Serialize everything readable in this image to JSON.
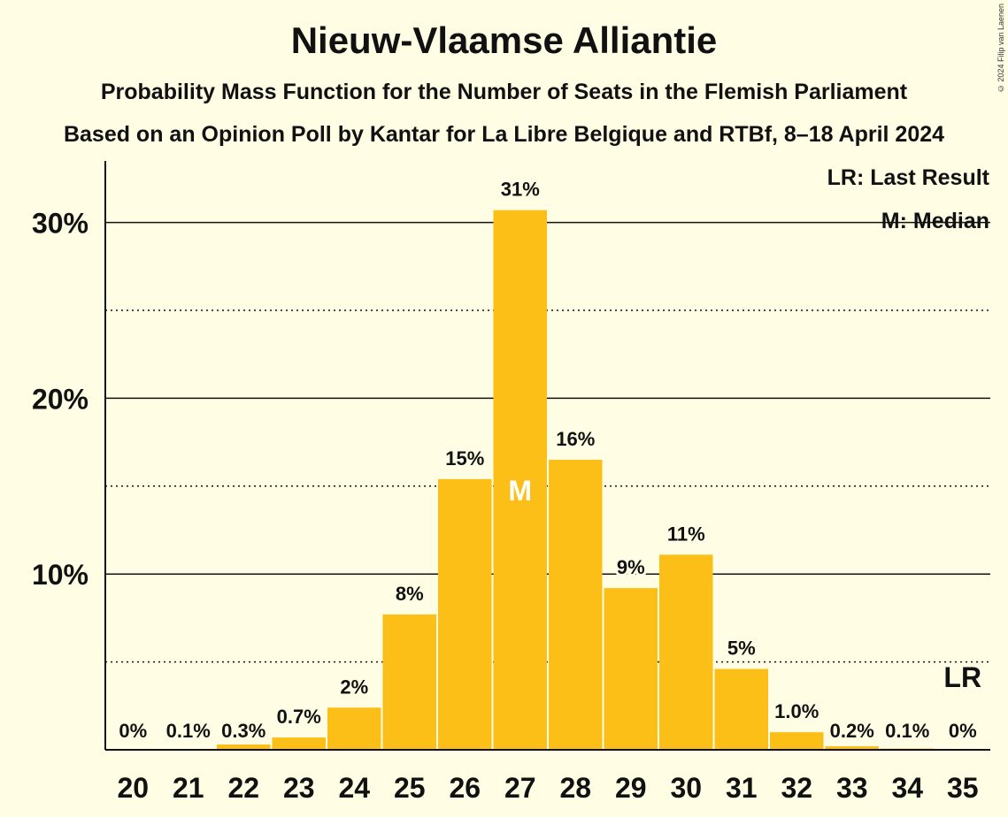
{
  "header": {
    "title": "Nieuw-Vlaamse Alliantie",
    "subtitle": "Probability Mass Function for the Number of Seats in the Flemish Parliament",
    "source": "Based on an Opinion Poll by Kantar for La Libre Belgique and RTBf, 8–18 April 2024",
    "copyright": "© 2024 Filip van Laenen"
  },
  "legend": {
    "last_result": "LR: Last Result",
    "median": "M: Median"
  },
  "colors": {
    "bar": "#FBBF18",
    "background": "#FFFEE5",
    "text": "#111111"
  },
  "chart_data": {
    "type": "bar",
    "title": "Nieuw-Vlaamse Alliantie",
    "xlabel": "",
    "ylabel": "",
    "categories": [
      "20",
      "21",
      "22",
      "23",
      "24",
      "25",
      "26",
      "27",
      "28",
      "29",
      "30",
      "31",
      "32",
      "33",
      "34",
      "35"
    ],
    "values": [
      0,
      0.05,
      0.3,
      0.7,
      2.4,
      7.7,
      15.4,
      30.7,
      16.5,
      9.2,
      11.1,
      4.6,
      1.0,
      0.2,
      0.07,
      0
    ],
    "labels": [
      "0%",
      "0.1%",
      "0.3%",
      "0.7%",
      "2%",
      "8%",
      "15%",
      "31%",
      "16%",
      "9%",
      "11%",
      "5%",
      "1.0%",
      "0.2%",
      "0.1%",
      "0%"
    ],
    "ylim": [
      0,
      33.5
    ],
    "yticks": [
      10,
      20,
      30
    ],
    "ytick_labels": [
      "10%",
      "20%",
      "30%"
    ],
    "minor_gridlines": [
      5,
      15,
      25
    ],
    "median": "27",
    "median_marker": "M",
    "last_result": "35",
    "last_result_marker": "LR",
    "legend_position": "top-right"
  }
}
